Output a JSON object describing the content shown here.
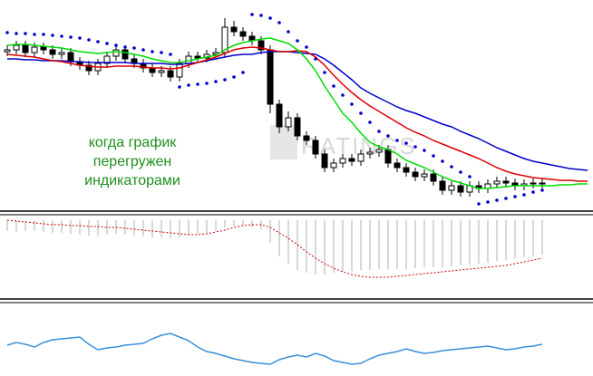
{
  "chart_data": [
    {
      "type": "candlestick",
      "annotations": [
        "когда график",
        "перегружен",
        "индикаторами"
      ],
      "watermark": "RATINGS",
      "xlim": [
        -0.8,
        64.6
      ],
      "ylim": [
        0,
        235
      ],
      "up_color": "#ffffff",
      "down_color": "#000000",
      "open": [
        178,
        180,
        185,
        177,
        183,
        180,
        175,
        177,
        167,
        163,
        157,
        165,
        173,
        180,
        170,
        165,
        160,
        155,
        157,
        150,
        165,
        173,
        171,
        175,
        177,
        205,
        200,
        195,
        190,
        180,
        120,
        95,
        105,
        85,
        80,
        65,
        50,
        55,
        60,
        57,
        65,
        67,
        70,
        55,
        50,
        45,
        40,
        43,
        35,
        25,
        30,
        23,
        30,
        27,
        32,
        35,
        33,
        30,
        32,
        33,
        null,
        null,
        null,
        null,
        null
      ],
      "high": [
        185,
        190,
        190,
        188,
        188,
        185,
        182,
        182,
        172,
        168,
        170,
        178,
        185,
        185,
        175,
        170,
        165,
        162,
        162,
        170,
        178,
        178,
        180,
        182,
        215,
        212,
        205,
        200,
        195,
        185,
        125,
        112,
        110,
        90,
        85,
        70,
        60,
        65,
        65,
        70,
        72,
        75,
        75,
        60,
        55,
        50,
        48,
        48,
        40,
        35,
        35,
        35,
        35,
        37,
        40,
        40,
        38,
        37,
        38,
        38,
        null,
        null,
        null,
        null,
        null
      ],
      "low": [
        173,
        175,
        172,
        172,
        175,
        170,
        170,
        162,
        158,
        152,
        152,
        160,
        168,
        165,
        160,
        155,
        150,
        150,
        145,
        145,
        160,
        166,
        166,
        170,
        172,
        195,
        190,
        185,
        175,
        110,
        88,
        90,
        80,
        75,
        60,
        45,
        45,
        50,
        52,
        52,
        60,
        62,
        50,
        45,
        40,
        35,
        35,
        30,
        20,
        20,
        18,
        18,
        22,
        22,
        27,
        28,
        25,
        25,
        27,
        27,
        null,
        null,
        null,
        null,
        null
      ],
      "close": [
        180,
        185,
        177,
        183,
        180,
        175,
        177,
        167,
        163,
        157,
        165,
        173,
        180,
        170,
        165,
        160,
        155,
        157,
        150,
        165,
        173,
        171,
        175,
        177,
        205,
        200,
        195,
        190,
        180,
        120,
        95,
        105,
        85,
        80,
        65,
        50,
        55,
        60,
        57,
        65,
        67,
        70,
        55,
        50,
        45,
        40,
        43,
        35,
        25,
        30,
        23,
        30,
        27,
        32,
        35,
        33,
        30,
        32,
        33,
        32,
        null,
        null,
        null,
        null,
        null
      ],
      "series": [
        {
          "color": "#0000cc",
          "style": "line",
          "values": [
            170,
            170,
            169,
            169,
            168,
            168,
            168,
            167,
            167,
            166,
            166,
            166,
            166,
            166,
            165,
            165,
            165,
            165,
            164,
            164,
            165,
            166,
            168,
            170,
            172,
            174,
            175,
            175,
            177,
            178,
            178,
            178,
            177,
            176,
            175,
            170,
            163,
            155,
            147,
            138,
            132,
            127,
            122,
            117,
            113,
            110,
            106,
            102,
            98,
            95,
            90,
            86,
            82,
            77,
            72,
            68,
            64,
            60,
            57,
            55,
            53,
            51,
            49,
            48,
            47
          ]
        },
        {
          "color": "#dd0000",
          "style": "line",
          "values": [
            175,
            174,
            173,
            172,
            170,
            168,
            167,
            165,
            163,
            162,
            161,
            161,
            162,
            162,
            162,
            161,
            160,
            160,
            159,
            160,
            163,
            166,
            169,
            172,
            176,
            180,
            182,
            183,
            182,
            180,
            178,
            178,
            179,
            178,
            172,
            163,
            152,
            142,
            133,
            125,
            118,
            112,
            106,
            100,
            94,
            89,
            85,
            80,
            76,
            72,
            68,
            64,
            60,
            55,
            50,
            46,
            43,
            41,
            39,
            38,
            37,
            36,
            36,
            35,
            35
          ]
        },
        {
          "color": "#00dd00",
          "style": "line",
          "values": [
            185,
            186,
            186,
            185,
            184,
            183,
            182,
            180,
            178,
            177,
            176,
            177,
            178,
            177,
            175,
            173,
            170,
            168,
            166,
            166,
            168,
            170,
            172,
            174,
            180,
            185,
            188,
            190,
            192,
            193,
            190,
            187,
            180,
            170,
            157,
            140,
            125,
            110,
            100,
            88,
            78,
            73,
            70,
            65,
            58,
            54,
            50,
            45,
            40,
            36,
            33,
            30,
            27,
            27,
            28,
            29,
            30,
            30,
            30,
            30,
            30,
            31,
            31,
            32,
            32
          ]
        },
        {
          "color": "#0000cc",
          "style": "dots",
          "values": [
            199,
            198,
            198,
            197,
            197,
            196,
            195,
            194,
            193,
            191,
            189,
            187,
            185,
            183,
            182,
            180,
            178,
            177,
            175,
            139,
            141,
            142,
            143,
            145,
            147,
            150,
            155,
            219,
            218,
            215,
            210,
            200,
            190,
            183,
            170,
            155,
            140,
            130,
            120,
            110,
            100,
            90,
            85,
            80,
            77,
            73,
            69,
            63,
            57,
            51,
            45,
            40,
            10,
            12,
            14,
            16,
            18,
            20,
            23,
            25,
            null,
            null,
            null,
            null,
            null
          ]
        }
      ]
    },
    {
      "type": "bar",
      "xlim": [
        -0.8,
        64.6
      ],
      "ylim": [
        -85,
        5
      ],
      "color": "#b0b0b0",
      "values": [
        -12,
        -13,
        -12,
        -12,
        -13,
        -14,
        -14,
        -15,
        -16,
        -17,
        -17,
        -16,
        -15,
        -16,
        -17,
        -18,
        -19,
        -19,
        -20,
        -19,
        -17,
        -15,
        -14,
        -12,
        -8,
        -6,
        -6,
        -8,
        -10,
        -25,
        -40,
        -48,
        -55,
        -58,
        -60,
        -60,
        -58,
        -57,
        -56,
        -55,
        -55,
        -54,
        -54,
        -54,
        -54,
        -53,
        -52,
        -52,
        -52,
        -51,
        -50,
        -49,
        -48,
        -47,
        -45,
        -44,
        -42,
        -41,
        -40,
        -38,
        null,
        null,
        null,
        null,
        null
      ],
      "series": [
        {
          "color": "#cc0000",
          "style": "dotted",
          "values": [
            0,
            -1,
            -2,
            -3,
            -4,
            -5,
            -5,
            -6,
            -6,
            -7,
            -7,
            -8,
            -8,
            -9,
            -10,
            -11,
            -12,
            -13,
            -14,
            -15,
            -16,
            -16,
            -15,
            -13,
            -11,
            -8,
            -6,
            -5,
            -5,
            -8,
            -14,
            -20,
            -27,
            -35,
            -42,
            -48,
            -53,
            -57,
            -60,
            -62,
            -63,
            -63,
            -63,
            -62,
            -61,
            -60,
            -59,
            -58,
            -57,
            -56,
            -55,
            -54,
            -53,
            -52,
            -51,
            -50,
            -48,
            -46,
            -44,
            -42,
            null,
            null,
            null,
            null,
            null
          ]
        }
      ]
    },
    {
      "type": "line",
      "xlim": [
        -0.8,
        64.6
      ],
      "ylim": [
        0,
        72
      ],
      "series": [
        {
          "color": "#3a8fd8",
          "style": "line",
          "values": [
            29,
            32,
            30,
            27,
            32,
            35,
            36,
            37,
            38,
            30,
            24,
            26,
            27,
            29,
            30,
            31,
            36,
            40,
            42,
            38,
            34,
            27,
            22,
            20,
            17,
            14,
            12,
            10,
            9,
            8,
            13,
            16,
            18,
            16,
            20,
            17,
            12,
            10,
            8,
            9,
            14,
            18,
            20,
            22,
            25,
            22,
            20,
            21,
            23,
            24,
            25,
            26,
            27,
            28,
            26,
            24,
            25,
            27,
            28,
            30,
            null,
            null,
            null,
            null,
            null
          ]
        }
      ]
    }
  ]
}
